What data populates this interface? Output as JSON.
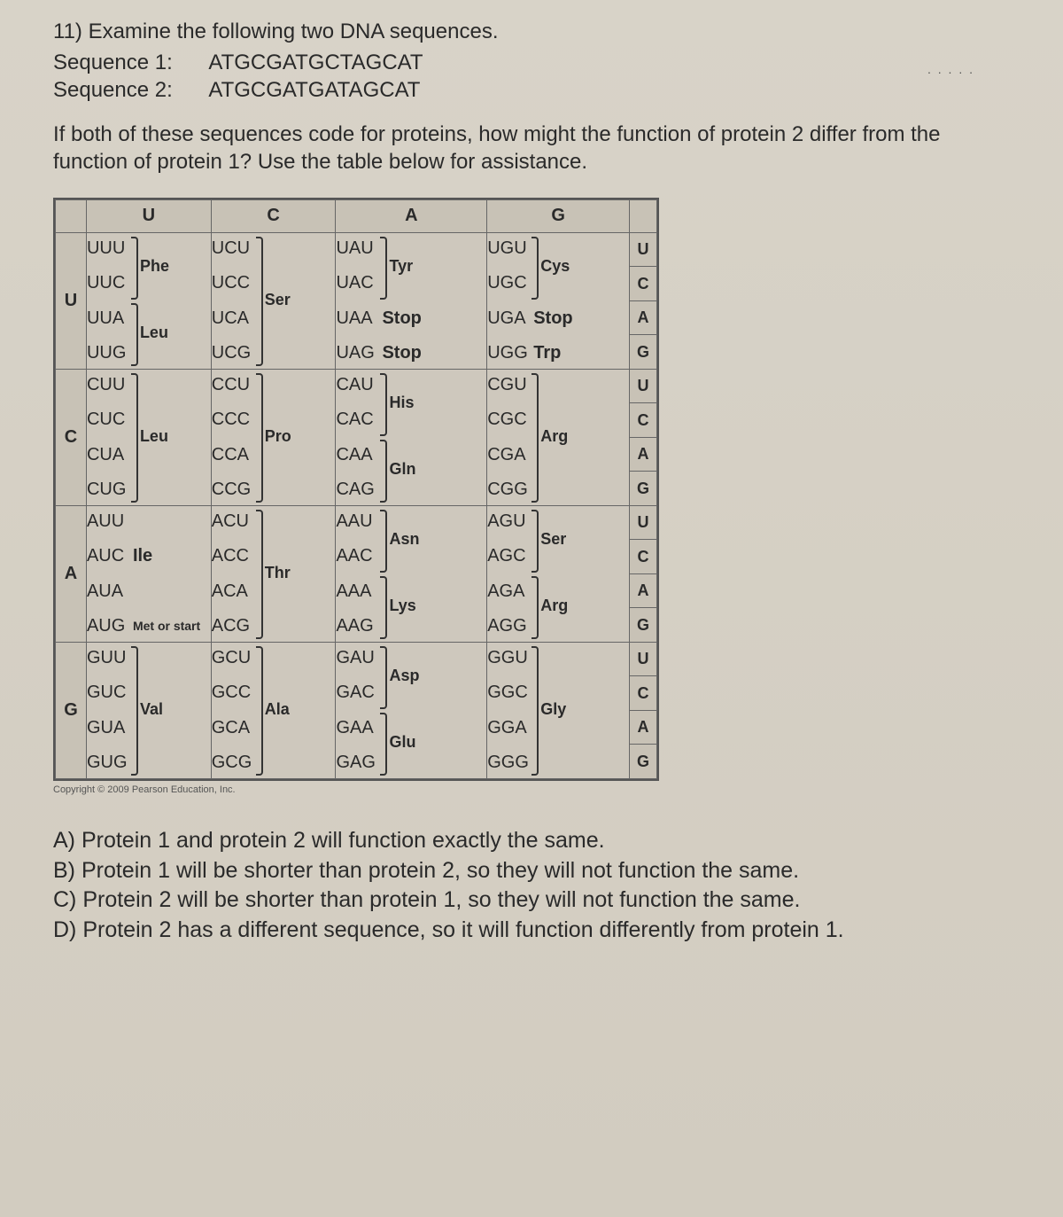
{
  "question": {
    "number": "11)",
    "stem": "Examine the following two DNA sequences.",
    "seq1_label": "Sequence 1:",
    "seq1": "ATGCGATGCTAGCAT",
    "seq2_label": "Sequence 2:",
    "seq2": "ATGCGATGATAGCAT",
    "prompt": "If both of these sequences code for proteins, how might the function of protein 2 differ from the function of protein 1? Use the table below for assistance."
  },
  "codon_table": {
    "col_headers": [
      "U",
      "C",
      "A",
      "G"
    ],
    "rows": [
      {
        "left": "U",
        "right": [
          "U",
          "C",
          "A",
          "G"
        ],
        "cells": [
          {
            "codons": [
              "UUU",
              "UUC",
              "UUA",
              "UUG"
            ],
            "aas": [
              {
                "name": "Phe",
                "span": [
                  0,
                  1
                ]
              },
              {
                "name": "Leu",
                "span": [
                  2,
                  3
                ]
              }
            ]
          },
          {
            "codons": [
              "UCU",
              "UCC",
              "UCA",
              "UCG"
            ],
            "aas": [
              {
                "name": "Ser",
                "span": [
                  0,
                  3
                ]
              }
            ]
          },
          {
            "codons": [
              "UAU",
              "UAC",
              "UAA",
              "UAG"
            ],
            "aas": [
              {
                "name": "Tyr",
                "span": [
                  0,
                  1
                ]
              },
              {
                "name": "Stop",
                "span": [
                  2,
                  2
                ],
                "inline": true
              },
              {
                "name": "Stop",
                "span": [
                  3,
                  3
                ],
                "inline": true
              }
            ]
          },
          {
            "codons": [
              "UGU",
              "UGC",
              "UGA",
              "UGG"
            ],
            "aas": [
              {
                "name": "Cys",
                "span": [
                  0,
                  1
                ]
              },
              {
                "name": "Stop",
                "span": [
                  2,
                  2
                ],
                "inline": true
              },
              {
                "name": "Trp",
                "span": [
                  3,
                  3
                ],
                "inline": true
              }
            ]
          }
        ]
      },
      {
        "left": "C",
        "right": [
          "U",
          "C",
          "A",
          "G"
        ],
        "cells": [
          {
            "codons": [
              "CUU",
              "CUC",
              "CUA",
              "CUG"
            ],
            "aas": [
              {
                "name": "Leu",
                "span": [
                  0,
                  3
                ]
              }
            ]
          },
          {
            "codons": [
              "CCU",
              "CCC",
              "CCA",
              "CCG"
            ],
            "aas": [
              {
                "name": "Pro",
                "span": [
                  0,
                  3
                ]
              }
            ]
          },
          {
            "codons": [
              "CAU",
              "CAC",
              "CAA",
              "CAG"
            ],
            "aas": [
              {
                "name": "His",
                "span": [
                  0,
                  1
                ]
              },
              {
                "name": "Gln",
                "span": [
                  2,
                  3
                ]
              }
            ]
          },
          {
            "codons": [
              "CGU",
              "CGC",
              "CGA",
              "CGG"
            ],
            "aas": [
              {
                "name": "Arg",
                "span": [
                  0,
                  3
                ]
              }
            ]
          }
        ]
      },
      {
        "left": "A",
        "right": [
          "U",
          "C",
          "A",
          "G"
        ],
        "cells": [
          {
            "codons": [
              "AUU",
              "AUC",
              "AUA",
              "AUG"
            ],
            "aas": [
              {
                "name": "Ile",
                "span": [
                  0,
                  2
                ],
                "inlineAt": 1
              },
              {
                "name": "Met or start",
                "span": [
                  3,
                  3
                ],
                "inline": true,
                "small": true
              }
            ]
          },
          {
            "codons": [
              "ACU",
              "ACC",
              "ACA",
              "ACG"
            ],
            "aas": [
              {
                "name": "Thr",
                "span": [
                  0,
                  3
                ]
              }
            ]
          },
          {
            "codons": [
              "AAU",
              "AAC",
              "AAA",
              "AAG"
            ],
            "aas": [
              {
                "name": "Asn",
                "span": [
                  0,
                  1
                ]
              },
              {
                "name": "Lys",
                "span": [
                  2,
                  3
                ]
              }
            ]
          },
          {
            "codons": [
              "AGU",
              "AGC",
              "AGA",
              "AGG"
            ],
            "aas": [
              {
                "name": "Ser",
                "span": [
                  0,
                  1
                ]
              },
              {
                "name": "Arg",
                "span": [
                  2,
                  3
                ]
              }
            ]
          }
        ]
      },
      {
        "left": "G",
        "right": [
          "U",
          "C",
          "A",
          "G"
        ],
        "cells": [
          {
            "codons": [
              "GUU",
              "GUC",
              "GUA",
              "GUG"
            ],
            "aas": [
              {
                "name": "Val",
                "span": [
                  0,
                  3
                ]
              }
            ]
          },
          {
            "codons": [
              "GCU",
              "GCC",
              "GCA",
              "GCG"
            ],
            "aas": [
              {
                "name": "Ala",
                "span": [
                  0,
                  3
                ]
              }
            ]
          },
          {
            "codons": [
              "GAU",
              "GAC",
              "GAA",
              "GAG"
            ],
            "aas": [
              {
                "name": "Asp",
                "span": [
                  0,
                  1
                ]
              },
              {
                "name": "Glu",
                "span": [
                  2,
                  3
                ]
              }
            ]
          },
          {
            "codons": [
              "GGU",
              "GGC",
              "GGA",
              "GGG"
            ],
            "aas": [
              {
                "name": "Gly",
                "span": [
                  0,
                  3
                ]
              }
            ]
          }
        ]
      }
    ],
    "copyright": "Copyright © 2009 Pearson Education, Inc."
  },
  "answers": [
    "A) Protein 1 and protein 2 will function exactly the same.",
    "B) Protein 1 will be shorter than protein 2, so they will not function the same.",
    "C) Protein 2 will be shorter than protein 1, so they will not function the same.",
    "D) Protein 2 has a different sequence, so it will function differently from protein 1."
  ],
  "colors": {
    "page_bg": "#d4cfc5",
    "text": "#2a2a2a",
    "table_border": "#666",
    "table_header_bg": "#c8c2b6"
  }
}
